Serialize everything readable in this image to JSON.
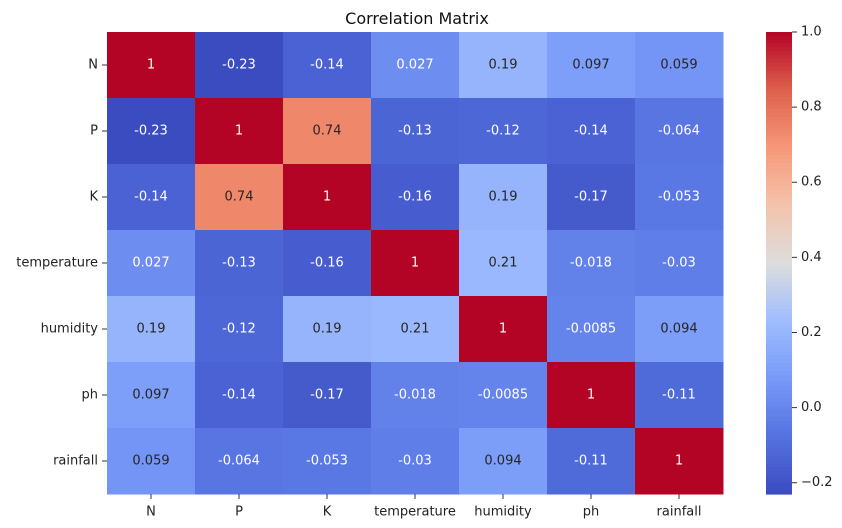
{
  "chart_data": {
    "type": "heatmap",
    "title": "Correlation Matrix",
    "rows": [
      "N",
      "P",
      "K",
      "temperature",
      "humidity",
      "ph",
      "rainfall"
    ],
    "cols": [
      "N",
      "P",
      "K",
      "temperature",
      "humidity",
      "ph",
      "rainfall"
    ],
    "values": [
      [
        1,
        -0.23,
        -0.14,
        0.027,
        0.19,
        0.097,
        0.059
      ],
      [
        -0.23,
        1,
        0.74,
        -0.13,
        -0.12,
        -0.14,
        -0.064
      ],
      [
        -0.14,
        0.74,
        1,
        -0.16,
        0.19,
        -0.17,
        -0.053
      ],
      [
        0.027,
        -0.13,
        -0.16,
        1,
        0.21,
        -0.018,
        -0.03
      ],
      [
        0.19,
        -0.12,
        0.19,
        0.21,
        1,
        -0.0085,
        0.094
      ],
      [
        0.097,
        -0.14,
        -0.17,
        -0.018,
        -0.0085,
        1,
        -0.11
      ],
      [
        0.059,
        -0.064,
        -0.053,
        -0.03,
        0.094,
        -0.11,
        1
      ]
    ],
    "labels": [
      [
        "1",
        "-0.23",
        "-0.14",
        "0.027",
        "0.19",
        "0.097",
        "0.059"
      ],
      [
        "-0.23",
        "1",
        "0.74",
        "-0.13",
        "-0.12",
        "-0.14",
        "-0.064"
      ],
      [
        "-0.14",
        "0.74",
        "1",
        "-0.16",
        "0.19",
        "-0.17",
        "-0.053"
      ],
      [
        "0.027",
        "-0.13",
        "-0.16",
        "1",
        "0.21",
        "-0.018",
        "-0.03"
      ],
      [
        "0.19",
        "-0.12",
        "0.19",
        "0.21",
        "1",
        "-0.0085",
        "0.094"
      ],
      [
        "0.097",
        "-0.14",
        "-0.17",
        "-0.018",
        "-0.0085",
        "1",
        "-0.11"
      ],
      [
        "0.059",
        "-0.064",
        "-0.053",
        "-0.03",
        "0.094",
        "-0.11",
        "1"
      ]
    ],
    "colormap": "coolwarm",
    "vmin": -0.23,
    "vmax": 1,
    "colorbar_ticks": [
      -0.2,
      0.0,
      0.2,
      0.4,
      0.6,
      0.8,
      1.0
    ],
    "colorbar_tick_labels": [
      "−0.2",
      "0.0",
      "0.2",
      "0.4",
      "0.6",
      "0.8",
      "1.0"
    ],
    "colorbar_position": "right",
    "grid": false
  }
}
